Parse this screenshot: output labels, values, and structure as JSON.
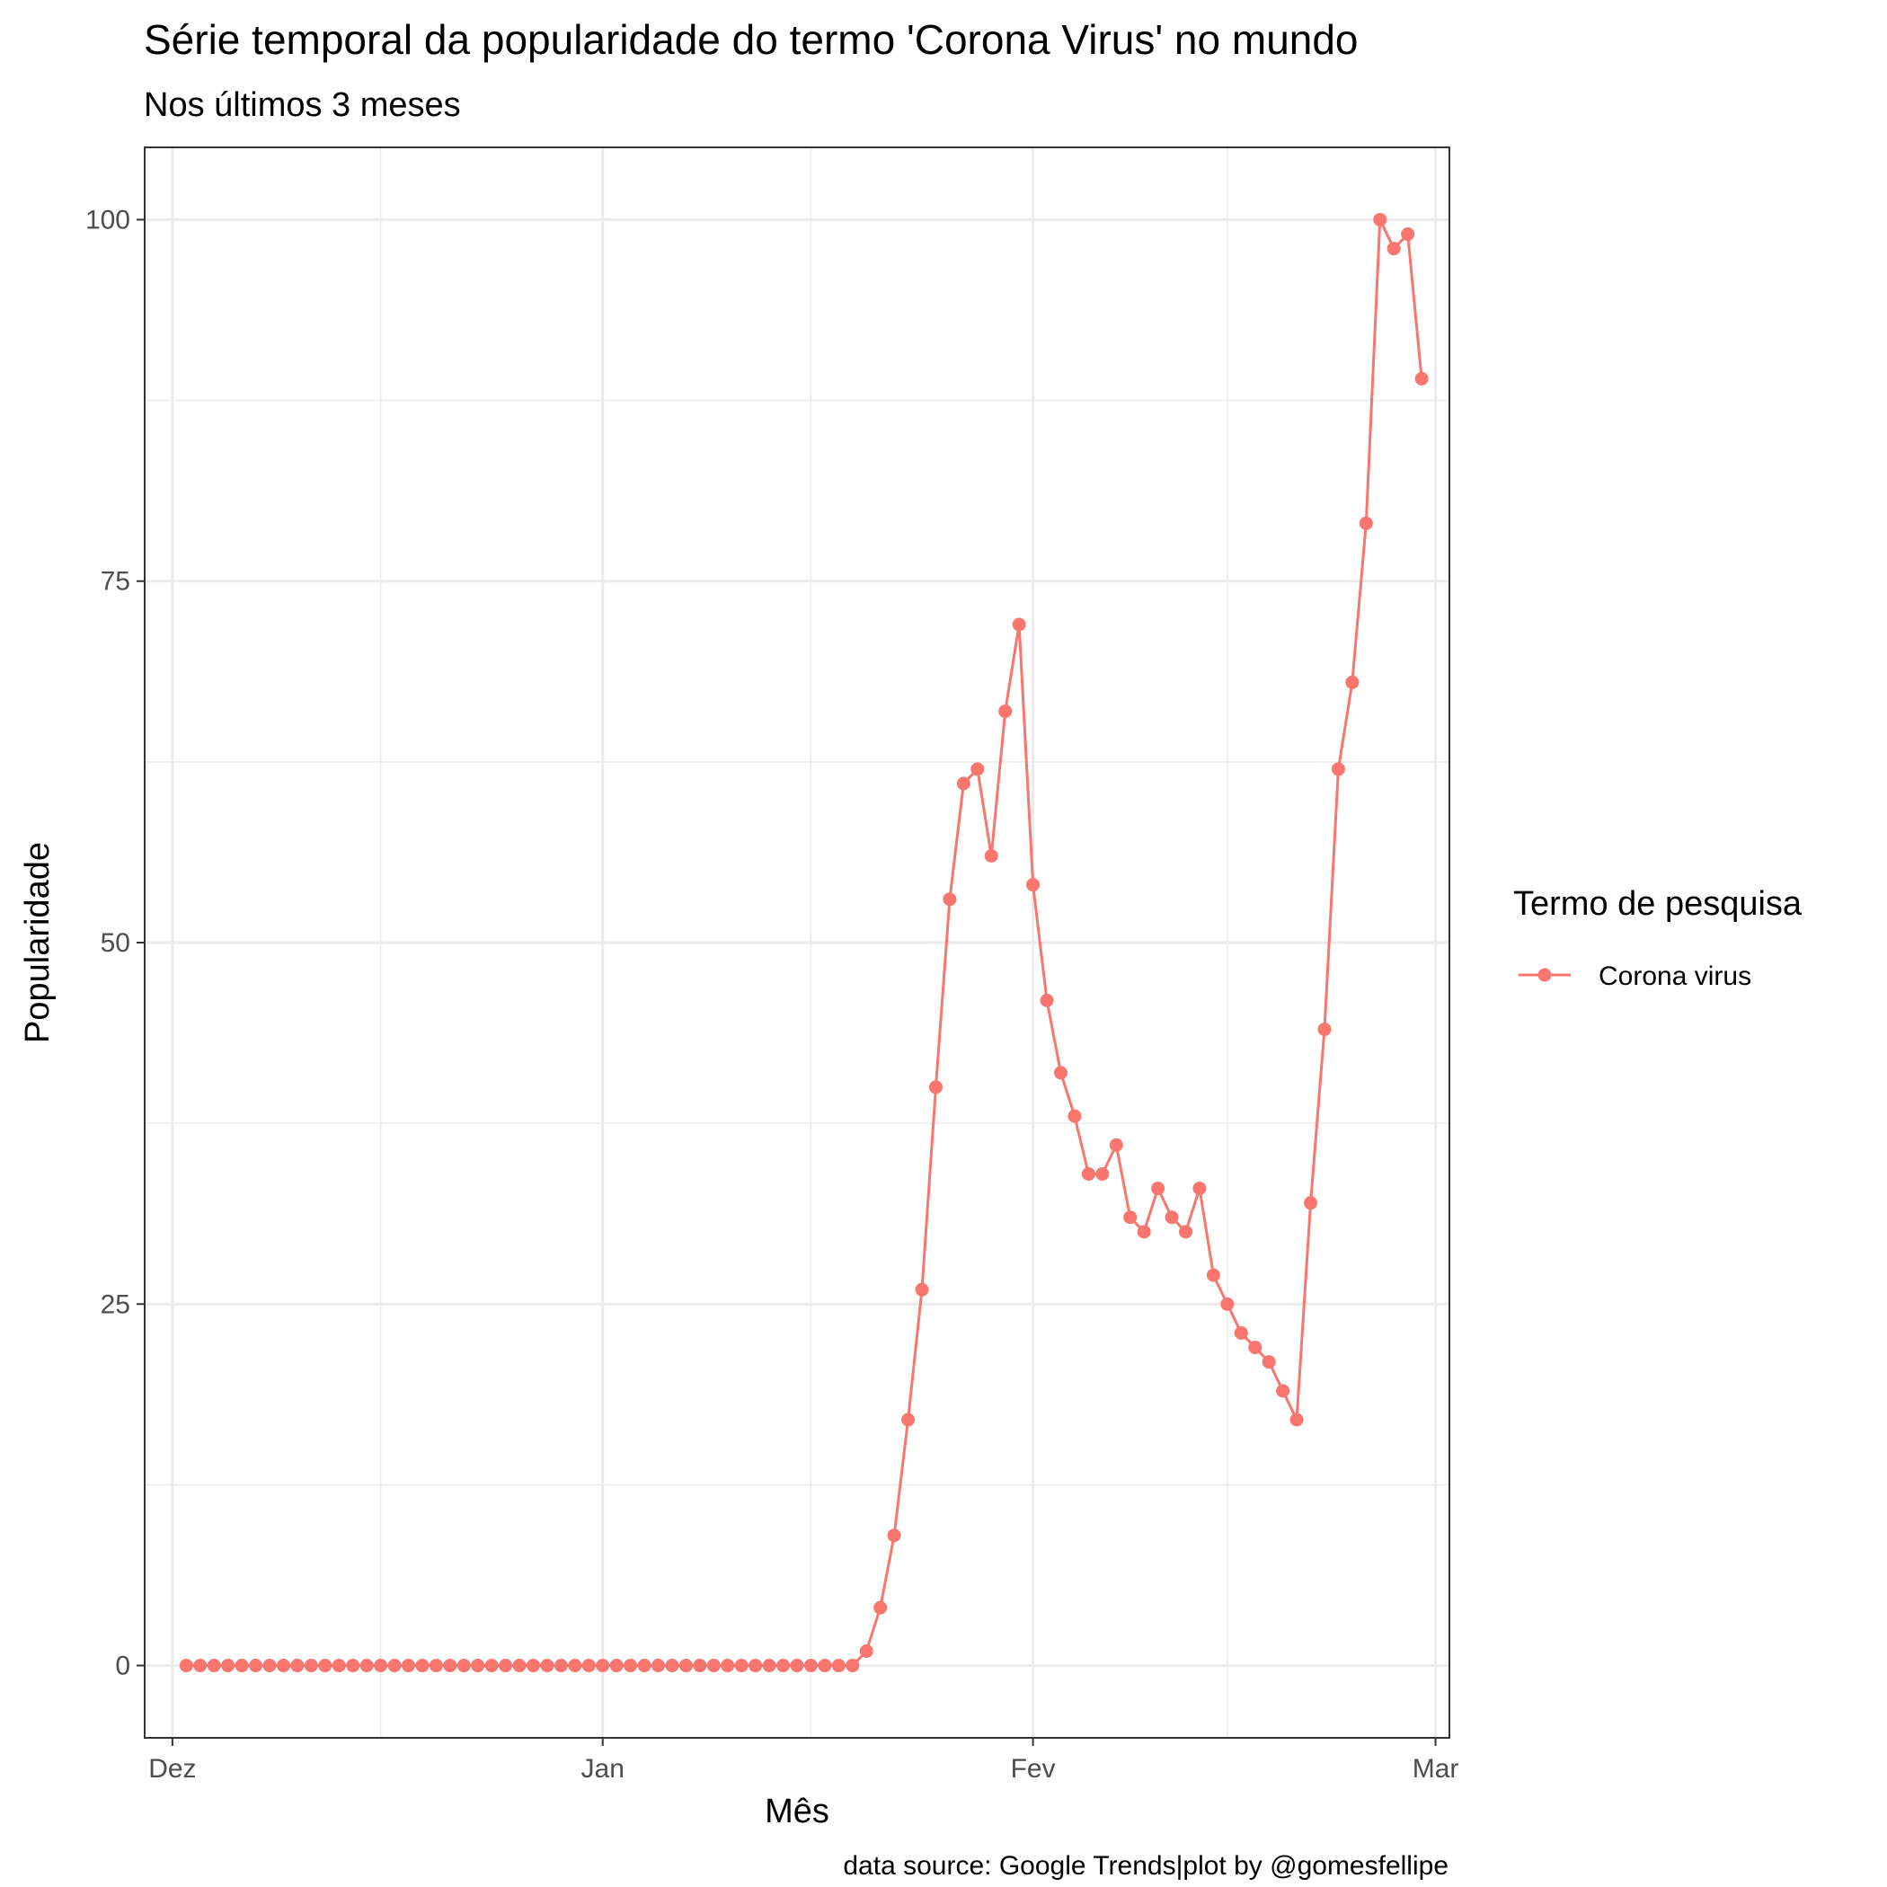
{
  "chart_data": {
    "type": "line",
    "title": "Série temporal da popularidade do termo 'Corona Virus' no mundo",
    "subtitle": "Nos últimos 3 meses",
    "xlabel": "Mês",
    "ylabel": "Popularidade",
    "caption": "data source: Google Trends|plot by @gomesfellipe",
    "legend_title": "Termo de pesquisa",
    "legend_position": "right",
    "grid": true,
    "x_type": "date",
    "xlim": [
      "2019-11-29",
      "2020-03-02"
    ],
    "ylim": [
      -5,
      105
    ],
    "x_ticks": [
      {
        "date": "2019-12-01",
        "label": "Dez"
      },
      {
        "date": "2020-01-01",
        "label": "Jan"
      },
      {
        "date": "2020-02-01",
        "label": "Fev"
      },
      {
        "date": "2020-03-01",
        "label": "Mar"
      }
    ],
    "x_minor_ticks": [
      "2019-12-16",
      "2020-01-16",
      "2020-02-15"
    ],
    "y_ticks": [
      0,
      25,
      50,
      75,
      100
    ],
    "y_minor_ticks": [
      12.5,
      37.5,
      62.5,
      87.5
    ],
    "series": [
      {
        "name": "Corona virus",
        "color": "#F8766D",
        "dates": [
          "2019-12-02",
          "2019-12-03",
          "2019-12-04",
          "2019-12-05",
          "2019-12-06",
          "2019-12-07",
          "2019-12-08",
          "2019-12-09",
          "2019-12-10",
          "2019-12-11",
          "2019-12-12",
          "2019-12-13",
          "2019-12-14",
          "2019-12-15",
          "2019-12-16",
          "2019-12-17",
          "2019-12-18",
          "2019-12-19",
          "2019-12-20",
          "2019-12-21",
          "2019-12-22",
          "2019-12-23",
          "2019-12-24",
          "2019-12-25",
          "2019-12-26",
          "2019-12-27",
          "2019-12-28",
          "2019-12-29",
          "2019-12-30",
          "2019-12-31",
          "2020-01-01",
          "2020-01-02",
          "2020-01-03",
          "2020-01-04",
          "2020-01-05",
          "2020-01-06",
          "2020-01-07",
          "2020-01-08",
          "2020-01-09",
          "2020-01-10",
          "2020-01-11",
          "2020-01-12",
          "2020-01-13",
          "2020-01-14",
          "2020-01-15",
          "2020-01-16",
          "2020-01-17",
          "2020-01-18",
          "2020-01-19",
          "2020-01-20",
          "2020-01-21",
          "2020-01-22",
          "2020-01-23",
          "2020-01-24",
          "2020-01-25",
          "2020-01-26",
          "2020-01-27",
          "2020-01-28",
          "2020-01-29",
          "2020-01-30",
          "2020-01-31",
          "2020-02-01",
          "2020-02-02",
          "2020-02-03",
          "2020-02-04",
          "2020-02-05",
          "2020-02-06",
          "2020-02-07",
          "2020-02-08",
          "2020-02-09",
          "2020-02-10",
          "2020-02-11",
          "2020-02-12",
          "2020-02-13",
          "2020-02-14",
          "2020-02-15",
          "2020-02-16",
          "2020-02-17",
          "2020-02-18",
          "2020-02-19",
          "2020-02-20",
          "2020-02-21",
          "2020-02-22",
          "2020-02-23",
          "2020-02-24",
          "2020-02-25",
          "2020-02-26",
          "2020-02-27",
          "2020-02-28",
          "2020-02-29"
        ],
        "values": [
          0,
          0,
          0,
          0,
          0,
          0,
          0,
          0,
          0,
          0,
          0,
          0,
          0,
          0,
          0,
          0,
          0,
          0,
          0,
          0,
          0,
          0,
          0,
          0,
          0,
          0,
          0,
          0,
          0,
          0,
          0,
          0,
          0,
          0,
          0,
          0,
          0,
          0,
          0,
          0,
          0,
          0,
          0,
          0,
          0,
          0,
          0,
          0,
          0,
          1,
          4,
          9,
          17,
          26,
          40,
          53,
          61,
          62,
          56,
          66,
          72,
          54,
          46,
          41,
          38,
          34,
          34,
          36,
          31,
          30,
          33,
          31,
          30,
          33,
          27,
          25,
          23,
          22,
          21,
          19,
          17,
          32,
          44,
          62,
          68,
          79,
          100,
          98,
          99,
          89
        ]
      }
    ]
  }
}
